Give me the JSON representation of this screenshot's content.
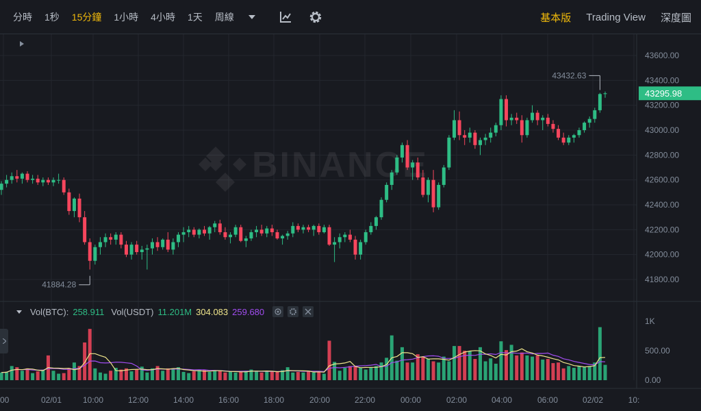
{
  "toolbar": {
    "intervals": [
      {
        "label": "分時",
        "active": false
      },
      {
        "label": "1秒",
        "active": false
      },
      {
        "label": "15分鐘",
        "active": true
      },
      {
        "label": "1小時",
        "active": false
      },
      {
        "label": "4小時",
        "active": false
      },
      {
        "label": "1天",
        "active": false
      },
      {
        "label": "周線",
        "active": false
      }
    ],
    "views": [
      {
        "label": "基本版",
        "active": true
      },
      {
        "label": "Trading View",
        "active": false
      },
      {
        "label": "深度圖",
        "active": false
      }
    ],
    "icons": [
      "chevron-down-icon",
      "indicator-icon",
      "gear-icon"
    ]
  },
  "watermark": "BINANCE",
  "volume_legend": {
    "btc_label": "Vol(BTC):",
    "btc_value": "258.911",
    "usdt_label": "Vol(USDT)",
    "usdt_value": "11.201M",
    "ma1_value": "304.083",
    "ma2_value": "259.680"
  },
  "colors": {
    "up": "#2ebd85",
    "down": "#f6465d",
    "accent": "#f0b90b",
    "ma_yellow": "#f0e68c",
    "ma_purple": "#a14df0",
    "price_tag": "#2ebd85"
  },
  "price_axis": {
    "ticks": [
      "43600.00",
      "43400.00",
      "43200.00",
      "43000.00",
      "42800.00",
      "42600.00",
      "42400.00",
      "42200.00",
      "42000.00",
      "41800.00"
    ],
    "current_price": "43295.98"
  },
  "volume_axis": {
    "ticks": [
      "1K",
      "500.00",
      "0.00"
    ]
  },
  "time_axis": {
    "ticks": [
      ":00",
      "02/01",
      "10:00",
      "12:00",
      "14:00",
      "16:00",
      "18:00",
      "20:00",
      "22:00",
      "00:00",
      "02:00",
      "04:00",
      "06:00",
      "02/02",
      "10:"
    ]
  },
  "annotations": {
    "high": "43432.63",
    "low": "41884.28"
  },
  "chart_data": {
    "type": "candlestick",
    "symbol_interval": "15分鐘",
    "price_range": [
      41700,
      43700
    ],
    "volume_range": [
      0,
      1100
    ],
    "high_label": 43432.63,
    "low_label": 41884.28,
    "last_price": 43295.98,
    "candles": [
      [
        42520,
        42590,
        42480,
        42570,
        130
      ],
      [
        42570,
        42640,
        42540,
        42600,
        140
      ],
      [
        42600,
        42660,
        42570,
        42630,
        240
      ],
      [
        42630,
        42680,
        42580,
        42610,
        220
      ],
      [
        42610,
        42660,
        42570,
        42650,
        160
      ],
      [
        42650,
        42670,
        42580,
        42600,
        200
      ],
      [
        42600,
        42640,
        42570,
        42610,
        120
      ],
      [
        42610,
        42640,
        42560,
        42580,
        150
      ],
      [
        42580,
        42620,
        42550,
        42600,
        180
      ],
      [
        42600,
        42620,
        42560,
        42580,
        420
      ],
      [
        42580,
        42620,
        42550,
        42600,
        160
      ],
      [
        42600,
        42650,
        42570,
        42600,
        110
      ],
      [
        42600,
        42620,
        42480,
        42500,
        120
      ],
      [
        42500,
        42530,
        42320,
        42350,
        200
      ],
      [
        42350,
        42460,
        42300,
        42450,
        300
      ],
      [
        42450,
        42490,
        42260,
        42300,
        240
      ],
      [
        42300,
        42350,
        42080,
        42100,
        640
      ],
      [
        42100,
        42130,
        41880,
        41950,
        870
      ],
      [
        41950,
        42080,
        41920,
        42060,
        200
      ],
      [
        42060,
        42140,
        42000,
        42100,
        130
      ],
      [
        42100,
        42170,
        42060,
        42140,
        110
      ],
      [
        42140,
        42170,
        42080,
        42120,
        160
      ],
      [
        42120,
        42180,
        42080,
        42160,
        210
      ],
      [
        42160,
        42180,
        42050,
        42080,
        180
      ],
      [
        42080,
        42110,
        41980,
        42000,
        200
      ],
      [
        42000,
        42100,
        41960,
        42080,
        150
      ],
      [
        42080,
        42110,
        42000,
        42020,
        180
      ],
      [
        42020,
        42070,
        41960,
        42040,
        230
      ],
      [
        42040,
        42080,
        41880,
        42050,
        130
      ],
      [
        42050,
        42130,
        42000,
        42100,
        200
      ],
      [
        42100,
        42140,
        42030,
        42060,
        240
      ],
      [
        42060,
        42130,
        42040,
        42120,
        160
      ],
      [
        42120,
        42180,
        42020,
        42040,
        200
      ],
      [
        42040,
        42130,
        42000,
        42100,
        180
      ],
      [
        42100,
        42180,
        42060,
        42160,
        220
      ],
      [
        42160,
        42220,
        42100,
        42180,
        140
      ],
      [
        42180,
        42230,
        42140,
        42200,
        120
      ],
      [
        42200,
        42220,
        42140,
        42160,
        150
      ],
      [
        42160,
        42210,
        42130,
        42200,
        170
      ],
      [
        42200,
        42230,
        42150,
        42170,
        180
      ],
      [
        42170,
        42230,
        42120,
        42220,
        140
      ],
      [
        42220,
        42270,
        42180,
        42250,
        160
      ],
      [
        42250,
        42280,
        42160,
        42180,
        160
      ],
      [
        42180,
        42220,
        42120,
        42140,
        130
      ],
      [
        42140,
        42180,
        42090,
        42160,
        150
      ],
      [
        42160,
        42240,
        42140,
        42220,
        130
      ],
      [
        42220,
        42240,
        42100,
        42110,
        140
      ],
      [
        42110,
        42150,
        42060,
        42130,
        160
      ],
      [
        42130,
        42200,
        42110,
        42180,
        180
      ],
      [
        42180,
        42230,
        42140,
        42200,
        160
      ],
      [
        42200,
        42240,
        42150,
        42170,
        130
      ],
      [
        42170,
        42230,
        42140,
        42210,
        150
      ],
      [
        42210,
        42240,
        42150,
        42180,
        140
      ],
      [
        42180,
        42200,
        42120,
        42130,
        140
      ],
      [
        42130,
        42160,
        42080,
        42150,
        170
      ],
      [
        42150,
        42190,
        42120,
        42170,
        220
      ],
      [
        42170,
        42260,
        42140,
        42230,
        130
      ],
      [
        42230,
        42250,
        42180,
        42200,
        140
      ],
      [
        42200,
        42240,
        42170,
        42220,
        130
      ],
      [
        42220,
        42240,
        42180,
        42200,
        160
      ],
      [
        42200,
        42240,
        42150,
        42230,
        130
      ],
      [
        42230,
        42250,
        42160,
        42180,
        150
      ],
      [
        42180,
        42240,
        42170,
        42220,
        110
      ],
      [
        42220,
        42240,
        42070,
        42080,
        670
      ],
      [
        42080,
        42140,
        41940,
        42100,
        310
      ],
      [
        42100,
        42170,
        42050,
        42140,
        160
      ],
      [
        42140,
        42180,
        42100,
        42160,
        210
      ],
      [
        42160,
        42200,
        42100,
        42120,
        240
      ],
      [
        42120,
        42150,
        41960,
        42000,
        240
      ],
      [
        42000,
        42120,
        41960,
        42100,
        210
      ],
      [
        42100,
        42200,
        42080,
        42180,
        180
      ],
      [
        42180,
        42260,
        42160,
        42230,
        220
      ],
      [
        42230,
        42310,
        42200,
        42300,
        240
      ],
      [
        42300,
        42460,
        42280,
        42440,
        300
      ],
      [
        42440,
        42580,
        42420,
        42560,
        380
      ],
      [
        42560,
        42680,
        42520,
        42660,
        760
      ],
      [
        42660,
        42800,
        42640,
        42780,
        330
      ],
      [
        42780,
        42900,
        42740,
        42880,
        560
      ],
      [
        42880,
        42920,
        42680,
        42700,
        300
      ],
      [
        42700,
        42760,
        42600,
        42740,
        300
      ],
      [
        42740,
        42780,
        42600,
        42620,
        440
      ],
      [
        42620,
        42680,
        42460,
        42480,
        390
      ],
      [
        42480,
        42620,
        42420,
        42600,
        360
      ],
      [
        42600,
        42680,
        42340,
        42380,
        320
      ],
      [
        42380,
        42580,
        42360,
        42560,
        300
      ],
      [
        42560,
        42720,
        42540,
        42700,
        400
      ],
      [
        42700,
        42960,
        42680,
        42940,
        320
      ],
      [
        42940,
        43160,
        42920,
        43080,
        580
      ],
      [
        43080,
        43150,
        42920,
        42960,
        580
      ],
      [
        42960,
        43000,
        42880,
        42940,
        500
      ],
      [
        42940,
        43020,
        42900,
        42980,
        490
      ],
      [
        42980,
        43000,
        42850,
        42880,
        360
      ],
      [
        42880,
        42940,
        42800,
        42920,
        560
      ],
      [
        42920,
        42970,
        42880,
        42940,
        320
      ],
      [
        42940,
        43020,
        42900,
        42980,
        370
      ],
      [
        42980,
        43060,
        42950,
        43040,
        280
      ],
      [
        43040,
        43280,
        43000,
        43250,
        660
      ],
      [
        43250,
        43280,
        43030,
        43080,
        510
      ],
      [
        43080,
        43130,
        43040,
        43100,
        600
      ],
      [
        43100,
        43140,
        43050,
        43080,
        420
      ],
      [
        43080,
        43120,
        42900,
        42960,
        470
      ],
      [
        42960,
        43100,
        42940,
        43080,
        420
      ],
      [
        43080,
        43200,
        43060,
        43140,
        400
      ],
      [
        43140,
        43160,
        43040,
        43080,
        420
      ],
      [
        43080,
        43120,
        43000,
        43100,
        350
      ],
      [
        43100,
        43130,
        43030,
        43050,
        360
      ],
      [
        43050,
        43080,
        42980,
        43010,
        290
      ],
      [
        43010,
        43040,
        42920,
        42940,
        300
      ],
      [
        42940,
        42980,
        42880,
        42900,
        200
      ],
      [
        42900,
        42960,
        42880,
        42940,
        240
      ],
      [
        42940,
        42970,
        42900,
        42960,
        210
      ],
      [
        42960,
        43020,
        42940,
        43000,
        240
      ],
      [
        43000,
        43070,
        42980,
        43060,
        230
      ],
      [
        43060,
        43110,
        43020,
        43090,
        240
      ],
      [
        43090,
        43180,
        43060,
        43160,
        300
      ],
      [
        43160,
        43300,
        43140,
        43290,
        900
      ],
      [
        43290,
        43310,
        43260,
        43296,
        260
      ]
    ]
  }
}
